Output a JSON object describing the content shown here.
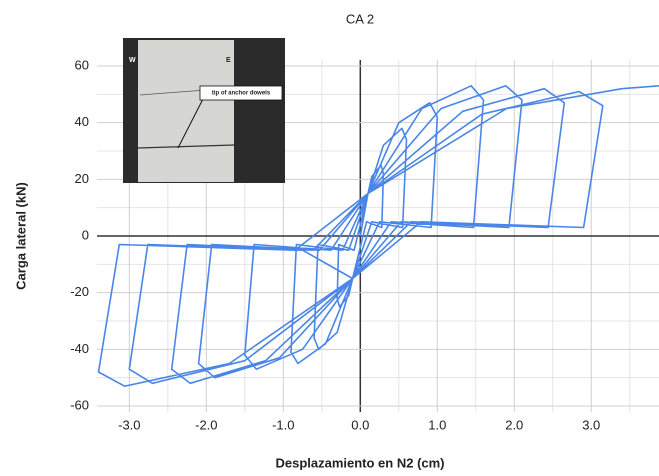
{
  "chart_data": {
    "type": "line",
    "title": "CA 2",
    "x_label": "Desplazamiento en N2 (cm)",
    "y_label": "Carga lateral (kN)",
    "xlim": [
      -3.42,
      3.88
    ],
    "ylim": [
      -60,
      60
    ],
    "xticks": [
      {
        "value": -3,
        "label": "-3.0"
      },
      {
        "value": -2,
        "label": "-2.0"
      },
      {
        "value": -1,
        "label": "-1.0"
      },
      {
        "value": 0,
        "label": "0.0"
      },
      {
        "value": 1,
        "label": "1.0"
      },
      {
        "value": 2,
        "label": "2.0"
      },
      {
        "value": 3,
        "label": "3.0"
      }
    ],
    "yticks": [
      -60,
      -40,
      -20,
      0,
      20,
      40,
      60
    ],
    "xminor": [
      -2.5,
      -1.5,
      -0.5,
      0.5,
      1.5,
      2.5,
      3.5
    ],
    "yminor": [
      -50,
      -30,
      -10,
      10,
      30,
      50
    ],
    "grid": true,
    "inset": {
      "left_mark": "W",
      "right_mark": "E",
      "annotation": "tip of anchor dowels"
    },
    "x": [
      0,
      0.1,
      0.15,
      0.27,
      0.3,
      0.28,
      0.08,
      -0.1,
      -0.15,
      -0.27,
      -0.3,
      -0.28,
      -0.08,
      0.1,
      0.3,
      0.54,
      0.6,
      0.55,
      0.15,
      -0.1,
      -0.3,
      -0.54,
      -0.6,
      -0.55,
      -0.15,
      0.1,
      0.5,
      0.9,
      1.0,
      0.92,
      0.25,
      -0.1,
      -0.45,
      -0.81,
      -0.9,
      -0.83,
      -0.23,
      0.1,
      0.8,
      1.44,
      1.6,
      1.47,
      0.4,
      -0.1,
      -0.75,
      -1.35,
      -1.5,
      -1.38,
      -0.38,
      0.1,
      1.05,
      1.89,
      2.1,
      1.93,
      0.53,
      -0.1,
      -1.05,
      -1.89,
      -2.1,
      -1.93,
      -0.53,
      0.1,
      1.33,
      2.39,
      2.65,
      2.44,
      0.66,
      -0.1,
      -1.23,
      -2.21,
      -2.45,
      -2.25,
      -0.61,
      0.1,
      1.58,
      2.84,
      3.15,
      2.9,
      0.79,
      -0.1,
      -1.5,
      -2.7,
      -3.0,
      -2.76,
      -0.75,
      -0.1,
      -1.7,
      -3.06,
      -3.4,
      -3.13,
      -0.85,
      0.1,
      1.9,
      3.4,
      3.88
    ],
    "series": [
      {
        "color": "#4a86e8",
        "values": [
          0,
          15,
          21,
          25,
          22,
          3,
          5,
          -15,
          -21,
          -25,
          -22,
          -3,
          -5,
          15,
          32,
          38,
          34,
          3,
          5,
          -15,
          -34,
          -40,
          -36,
          -3,
          -5,
          15,
          40,
          47,
          42,
          3,
          5,
          -15,
          -38,
          -45,
          -41,
          -3,
          -5,
          15,
          45,
          53,
          48,
          3,
          5,
          -15,
          -40,
          -47,
          -42,
          -3,
          -5,
          15,
          45,
          53,
          48,
          3,
          5,
          -15,
          -43,
          -50,
          -45,
          -3,
          -5,
          15,
          44,
          52,
          47,
          3,
          5,
          -15,
          -44,
          -52,
          -47,
          -3,
          -5,
          15,
          43,
          51,
          46,
          3,
          5,
          -15,
          -44,
          -52,
          -47,
          -3,
          -5,
          -15,
          -45,
          -53,
          -48,
          -3,
          -5,
          15,
          45,
          52,
          53
        ]
      }
    ]
  }
}
